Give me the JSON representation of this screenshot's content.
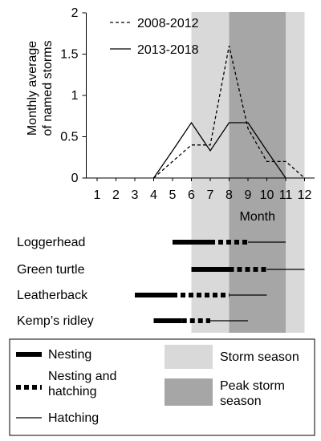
{
  "chart_data": {
    "type": "line",
    "x": [
      1,
      2,
      3,
      4,
      5,
      6,
      7,
      8,
      9,
      10,
      11,
      12
    ],
    "xlabel": "Month",
    "ylabel_lines": [
      "Monthly average",
      "of named storms"
    ],
    "ylim": [
      0,
      2
    ],
    "yticks": [
      "0",
      "0.5",
      "1",
      "1.5",
      "2"
    ],
    "yticks_values": [
      0,
      0.5,
      1,
      1.5,
      2
    ],
    "xticks": [
      "1",
      "2",
      "3",
      "4",
      "5",
      "6",
      "7",
      "8",
      "9",
      "10",
      "11",
      "12"
    ],
    "series": [
      {
        "name": "2008-2012",
        "style": "dashed",
        "points": [
          [
            4,
            0
          ],
          [
            5,
            0.2
          ],
          [
            6,
            0.4
          ],
          [
            7,
            0.4
          ],
          [
            8,
            1.6
          ],
          [
            9,
            0.6
          ],
          [
            10,
            0.2
          ],
          [
            11,
            0.2
          ],
          [
            12,
            0
          ]
        ]
      },
      {
        "name": "2013-2018",
        "style": "solid",
        "points": [
          [
            4,
            0
          ],
          [
            5,
            0.33
          ],
          [
            6,
            0.67
          ],
          [
            7,
            0.33
          ],
          [
            8,
            0.67
          ],
          [
            9,
            0.67
          ],
          [
            10,
            0.33
          ],
          [
            11,
            0
          ]
        ]
      }
    ],
    "storm_season": {
      "start": 6,
      "end": 12,
      "color": "#d9d9d9"
    },
    "peak_storm_season": {
      "start": 8,
      "end": 11,
      "color": "#a6a6a6"
    },
    "species": [
      {
        "name": "Loggerhead",
        "nesting": [
          5,
          7
        ],
        "nesting_hatching": [
          7,
          9
        ],
        "hatching": [
          9,
          11
        ]
      },
      {
        "name": "Green turtle",
        "nesting": [
          6,
          8
        ],
        "nesting_hatching": [
          8,
          10
        ],
        "hatching": [
          10,
          12
        ]
      },
      {
        "name": "Leatherback",
        "nesting": [
          3,
          5
        ],
        "nesting_hatching": [
          5,
          8
        ],
        "hatching": [
          8,
          10
        ]
      },
      {
        "name": "Kemp’s ridley",
        "nesting": [
          4,
          5.5
        ],
        "nesting_hatching": [
          5.5,
          7
        ],
        "hatching": [
          7,
          9
        ]
      }
    ],
    "legend": {
      "nesting": "Nesting",
      "nesting_hatching_lines": [
        "Nesting and",
        "hatching"
      ],
      "hatching": "Hatching",
      "storm_season": "Storm season",
      "peak_storm_season_lines": [
        "Peak storm",
        "season"
      ]
    }
  }
}
